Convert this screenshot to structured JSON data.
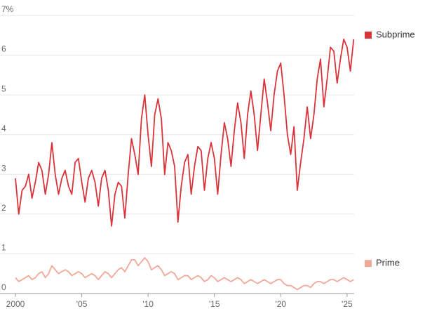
{
  "chart_data": {
    "type": "line",
    "x": [
      2000,
      2000.25,
      2000.5,
      2000.75,
      2001,
      2001.25,
      2001.5,
      2001.75,
      2002,
      2002.25,
      2002.5,
      2002.75,
      2003,
      2003.25,
      2003.5,
      2003.75,
      2004,
      2004.25,
      2004.5,
      2004.75,
      2005,
      2005.25,
      2005.5,
      2005.75,
      2006,
      2006.25,
      2006.5,
      2006.75,
      2007,
      2007.25,
      2007.5,
      2007.75,
      2008,
      2008.25,
      2008.5,
      2008.75,
      2009,
      2009.25,
      2009.5,
      2009.75,
      2010,
      2010.25,
      2010.5,
      2010.75,
      2011,
      2011.25,
      2011.5,
      2011.75,
      2012,
      2012.25,
      2012.5,
      2012.75,
      2013,
      2013.25,
      2013.5,
      2013.75,
      2014,
      2014.25,
      2014.5,
      2014.75,
      2015,
      2015.25,
      2015.5,
      2015.75,
      2016,
      2016.25,
      2016.5,
      2016.75,
      2017,
      2017.25,
      2017.5,
      2017.75,
      2018,
      2018.25,
      2018.5,
      2018.75,
      2019,
      2019.25,
      2019.5,
      2019.75,
      2020,
      2020.25,
      2020.5,
      2020.75,
      2021,
      2021.25,
      2021.5,
      2021.75,
      2022,
      2022.25,
      2022.5,
      2022.75,
      2023,
      2023.25,
      2023.5,
      2023.75,
      2024,
      2024.25,
      2024.5,
      2024.75,
      2025,
      2025.25,
      2025.5
    ],
    "series": [
      {
        "name": "Subprime",
        "color": "#d9343a",
        "values": [
          2.9,
          2.0,
          2.6,
          2.7,
          3.0,
          2.4,
          2.8,
          3.3,
          3.1,
          2.5,
          3.0,
          3.8,
          3.0,
          2.5,
          2.9,
          3.1,
          2.7,
          2.5,
          3.3,
          3.4,
          2.8,
          2.3,
          2.9,
          3.1,
          2.8,
          2.2,
          2.9,
          3.1,
          2.6,
          1.7,
          2.5,
          2.8,
          2.7,
          1.9,
          3.0,
          3.9,
          3.5,
          3.0,
          4.4,
          5.0,
          4.0,
          3.2,
          4.5,
          4.9,
          4.4,
          3.0,
          3.8,
          3.6,
          3.2,
          1.8,
          2.7,
          3.3,
          3.5,
          2.5,
          3.2,
          3.7,
          3.6,
          2.6,
          3.4,
          3.8,
          3.4,
          2.5,
          3.5,
          4.3,
          3.9,
          3.2,
          4.1,
          4.8,
          4.3,
          3.4,
          4.5,
          5.1,
          4.5,
          3.6,
          4.5,
          5.4,
          4.8,
          4.1,
          5.0,
          5.6,
          5.8,
          5.0,
          4.0,
          3.5,
          4.2,
          2.6,
          3.3,
          3.9,
          4.7,
          3.9,
          4.5,
          5.4,
          5.9,
          4.7,
          5.4,
          6.2,
          6.1,
          5.3,
          5.9,
          6.4,
          6.2,
          5.6,
          6.4
        ]
      },
      {
        "name": "Prime",
        "color": "#f2a898",
        "values": [
          0.4,
          0.3,
          0.35,
          0.4,
          0.45,
          0.35,
          0.4,
          0.5,
          0.55,
          0.4,
          0.5,
          0.7,
          0.6,
          0.5,
          0.55,
          0.6,
          0.55,
          0.45,
          0.5,
          0.55,
          0.5,
          0.4,
          0.45,
          0.5,
          0.45,
          0.35,
          0.45,
          0.55,
          0.5,
          0.4,
          0.5,
          0.6,
          0.65,
          0.55,
          0.7,
          0.85,
          0.85,
          0.7,
          0.8,
          0.9,
          0.8,
          0.6,
          0.65,
          0.7,
          0.6,
          0.45,
          0.5,
          0.55,
          0.5,
          0.35,
          0.4,
          0.45,
          0.45,
          0.35,
          0.4,
          0.45,
          0.4,
          0.3,
          0.35,
          0.45,
          0.4,
          0.3,
          0.35,
          0.4,
          0.35,
          0.3,
          0.35,
          0.4,
          0.35,
          0.25,
          0.3,
          0.35,
          0.3,
          0.25,
          0.3,
          0.35,
          0.3,
          0.25,
          0.3,
          0.35,
          0.35,
          0.25,
          0.2,
          0.2,
          0.15,
          0.1,
          0.15,
          0.2,
          0.2,
          0.15,
          0.25,
          0.3,
          0.3,
          0.25,
          0.3,
          0.35,
          0.35,
          0.3,
          0.35,
          0.4,
          0.35,
          0.3,
          0.35
        ]
      }
    ],
    "xlim": [
      2000,
      2025.8
    ],
    "xticks": [
      2000,
      {
        "value": 2005,
        "label": "'05"
      },
      {
        "value": 2010,
        "label": "'10"
      },
      {
        "value": 2015,
        "label": "'15"
      },
      {
        "value": 2020,
        "label": "'20"
      },
      {
        "value": 2025,
        "label": "'25"
      }
    ],
    "ylim": [
      0,
      7
    ],
    "yticks": [
      0,
      1,
      2,
      3,
      4,
      5,
      6,
      {
        "value": 7,
        "label": "7%"
      }
    ],
    "grid": true
  }
}
